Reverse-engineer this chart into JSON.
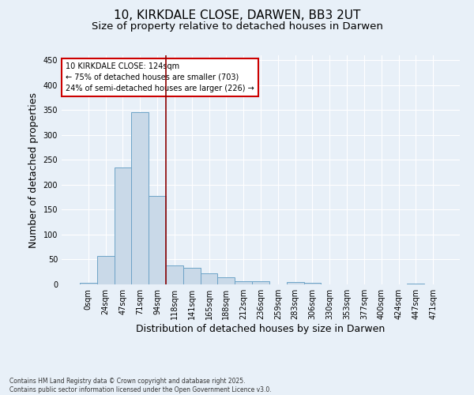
{
  "title_line1": "10, KIRKDALE CLOSE, DARWEN, BB3 2UT",
  "title_line2": "Size of property relative to detached houses in Darwen",
  "xlabel": "Distribution of detached houses by size in Darwen",
  "ylabel": "Number of detached properties",
  "footnote": "Contains HM Land Registry data © Crown copyright and database right 2025.\nContains public sector information licensed under the Open Government Licence v3.0.",
  "bar_labels": [
    "0sqm",
    "24sqm",
    "47sqm",
    "71sqm",
    "94sqm",
    "118sqm",
    "141sqm",
    "165sqm",
    "188sqm",
    "212sqm",
    "236sqm",
    "259sqm",
    "283sqm",
    "306sqm",
    "330sqm",
    "353sqm",
    "377sqm",
    "400sqm",
    "424sqm",
    "447sqm",
    "471sqm"
  ],
  "bar_values": [
    3,
    57,
    234,
    346,
    178,
    38,
    33,
    22,
    14,
    6,
    6,
    0,
    4,
    3,
    0,
    0,
    0,
    0,
    0,
    2,
    0
  ],
  "bar_color": "#c9d9e8",
  "bar_edge_color": "#6da3c7",
  "vline_x": 4.5,
  "vline_color": "#8b0000",
  "annotation_text": "10 KIRKDALE CLOSE: 124sqm\n← 75% of detached houses are smaller (703)\n24% of semi-detached houses are larger (226) →",
  "annotation_box_color": "#ffffff",
  "annotation_box_edge": "#cc0000",
  "ylim": [
    0,
    460
  ],
  "yticks": [
    0,
    50,
    100,
    150,
    200,
    250,
    300,
    350,
    400,
    450
  ],
  "background_color": "#e8f0f8",
  "plot_bg_color": "#e8f0f8",
  "grid_color": "#ffffff",
  "title_fontsize": 11,
  "subtitle_fontsize": 9.5,
  "tick_fontsize": 7,
  "label_fontsize": 9,
  "annot_fontsize": 7,
  "footnote_fontsize": 5.5
}
